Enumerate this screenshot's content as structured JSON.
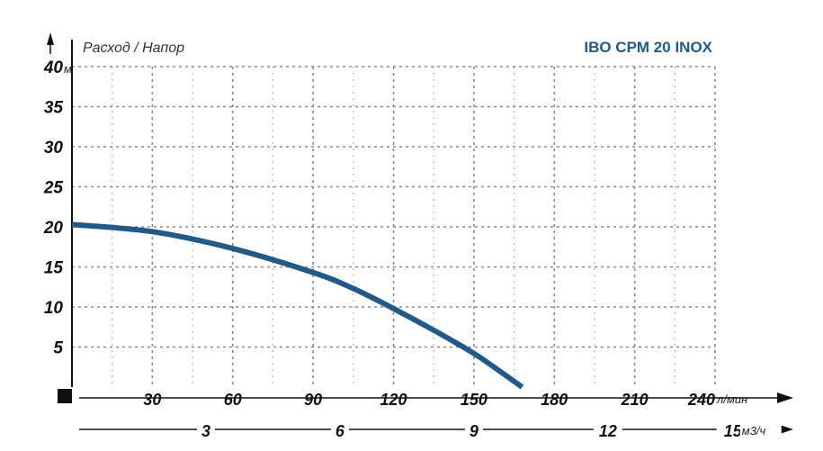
{
  "chart_data": {
    "type": "line",
    "title": "IBO CPM 20 INOX",
    "ylabel": "Расход / Напор",
    "y_unit": "м",
    "x_unit": "л/мин",
    "x2_unit": "м3/ч",
    "ylim": [
      0,
      40
    ],
    "xlim": [
      0,
      240
    ],
    "y_ticks": [
      "5",
      "10",
      "15",
      "20",
      "25",
      "30",
      "35",
      "40"
    ],
    "x_ticks": [
      "30",
      "60",
      "90",
      "120",
      "150",
      "180",
      "210",
      "240"
    ],
    "x2_ticks": [
      "3",
      "6",
      "9",
      "12",
      "15"
    ],
    "grid": true,
    "series": [
      {
        "color": "#1f5a8a",
        "x": [
          0,
          30,
          60,
          90,
          105,
          120,
          135,
          150,
          160,
          168
        ],
        "y": [
          20.3,
          19.4,
          17.3,
          14.3,
          12.3,
          9.8,
          7.1,
          4.2,
          1.9,
          0
        ]
      }
    ]
  }
}
